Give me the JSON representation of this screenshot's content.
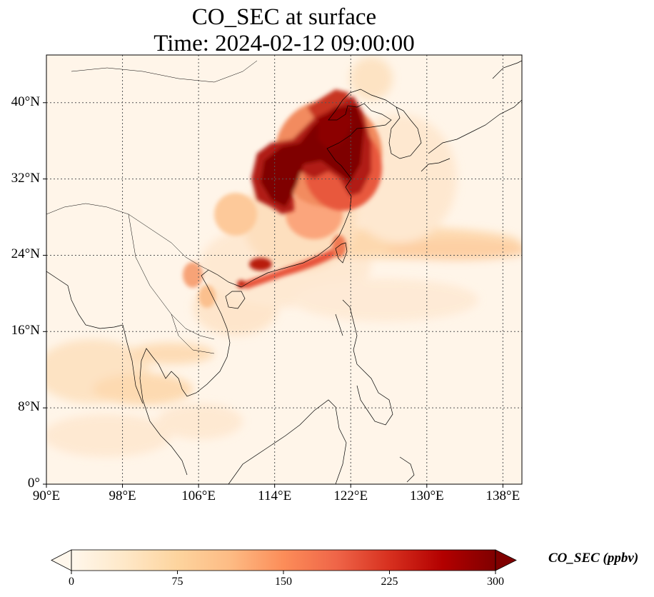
{
  "title": {
    "line1": "CO_SEC at surface",
    "line2": "Time: 2024-02-12 09:00:00"
  },
  "map": {
    "projection": "PlateCarree",
    "lon_range": [
      90,
      140
    ],
    "lat_range": [
      0,
      45
    ],
    "grid": "dotted",
    "lat_ticks": [
      {
        "value": 0,
        "label": "0°"
      },
      {
        "value": 8,
        "label": "8°N"
      },
      {
        "value": 16,
        "label": "16°N"
      },
      {
        "value": 24,
        "label": "24°N"
      },
      {
        "value": 32,
        "label": "32°N"
      },
      {
        "value": 40,
        "label": "40°N"
      }
    ],
    "lon_ticks": [
      {
        "value": 90,
        "label": "90°E"
      },
      {
        "value": 98,
        "label": "98°E"
      },
      {
        "value": 106,
        "label": "106°E"
      },
      {
        "value": 114,
        "label": "114°E"
      },
      {
        "value": 122,
        "label": "122°E"
      },
      {
        "value": 130,
        "label": "130°E"
      },
      {
        "value": 138,
        "label": "138°E"
      }
    ],
    "plumes": [
      {
        "region": "North China Plain to Yangtze",
        "level": "very high"
      },
      {
        "region": "Pearl River Delta coast",
        "level": "high"
      },
      {
        "region": "East China Sea outflow",
        "level": "moderate"
      },
      {
        "region": "Indochina / Bay of Bengal",
        "level": "low"
      }
    ]
  },
  "colorbar": {
    "label": "CO_SEC (ppbv)",
    "colormap": "OrRd",
    "range": [
      0,
      300
    ],
    "extend": "both",
    "ticks": [
      "0",
      "75",
      "150",
      "225",
      "300"
    ],
    "colors": [
      "#fff7ec",
      "#fee8c8",
      "#fdd49e",
      "#fdbb84",
      "#fc8d59",
      "#ef6548",
      "#d7301f",
      "#b30000",
      "#7f0000"
    ]
  }
}
